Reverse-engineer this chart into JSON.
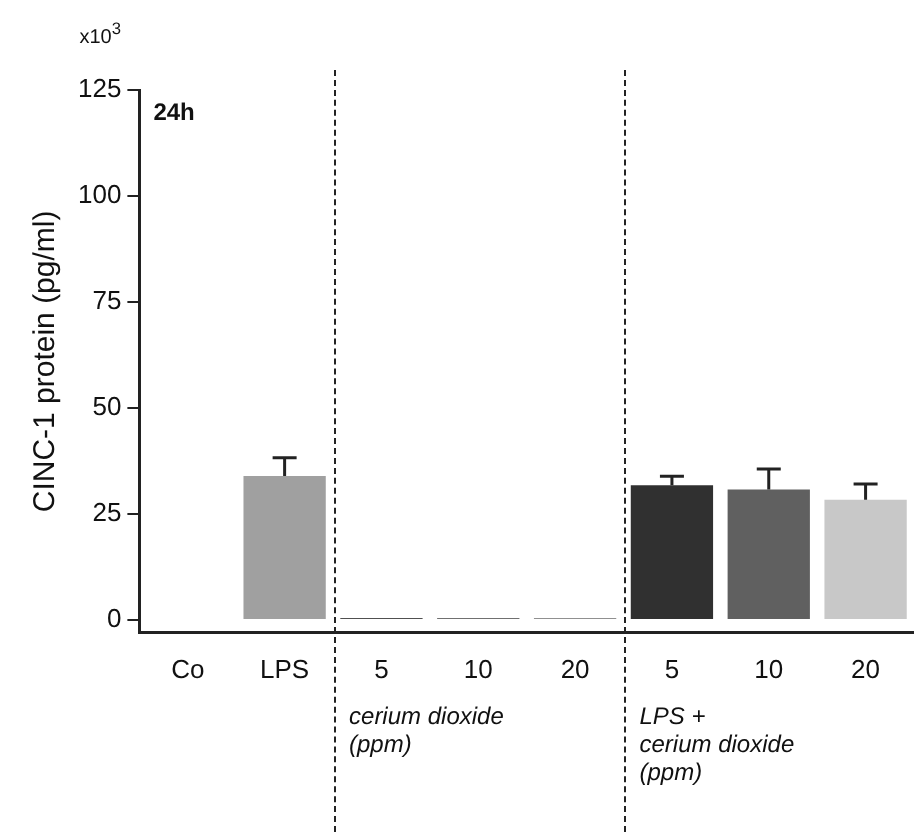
{
  "chart_data": {
    "type": "bar",
    "ylabel": "CINC-1 protein (pg/ml)",
    "categories": [
      "Co",
      "LPS",
      "5",
      "10",
      "20",
      "5",
      "10",
      "20"
    ],
    "values": [
      0.5,
      34,
      0.5,
      0.5,
      0.5,
      31.8,
      30.8,
      28.4
    ],
    "errors": [
      null,
      4.3,
      null,
      null,
      null,
      2.1,
      4.8,
      3.7
    ],
    "colors": [
      "#ffffff",
      "#a0a0a0",
      "#505050",
      "#707070",
      "#909090",
      "#303030",
      "#606060",
      "#c8c8c8"
    ],
    "ylim": [
      -3,
      125
    ],
    "yticks": [
      0,
      25,
      50,
      75,
      100,
      125
    ],
    "grid": false,
    "legend": false,
    "annotations": [
      "x10$^{3}$",
      "24h",
      "cerium dioxide\n(ppm)",
      "LPS +\ncerium dioxide\n(ppm)"
    ]
  }
}
